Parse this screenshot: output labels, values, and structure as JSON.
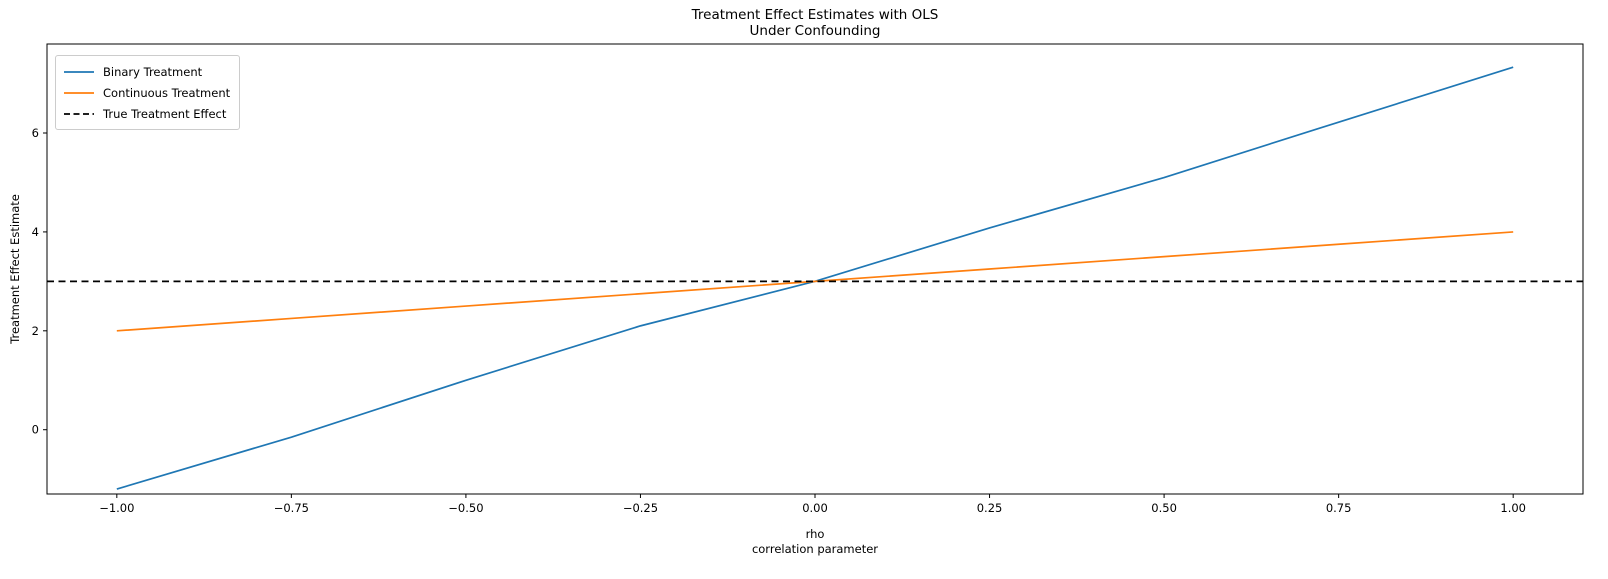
{
  "figure": {
    "background": "#ffffff"
  },
  "chart_data": {
    "type": "line",
    "title_lines": [
      "Treatment Effect Estimates with OLS",
      "Under Confounding"
    ],
    "xlabel_lines": [
      "rho",
      "correlation parameter"
    ],
    "ylabel": "Treatment Effect Estimate",
    "xlim": [
      -1.1,
      1.1
    ],
    "ylim": [
      -1.3,
      7.8
    ],
    "grid": false,
    "legend_position": "upper left",
    "axis_color": "#000000",
    "xticks": {
      "values": [
        -1.0,
        -0.75,
        -0.5,
        -0.25,
        0.0,
        0.25,
        0.5,
        0.75,
        1.0
      ],
      "labels": [
        "−1.00",
        "−0.75",
        "−0.50",
        "−0.25",
        "0.00",
        "0.25",
        "0.50",
        "0.75",
        "1.00"
      ]
    },
    "yticks": {
      "values": [
        0,
        2,
        4,
        6
      ],
      "labels": [
        "0",
        "2",
        "4",
        "6"
      ]
    },
    "x": [
      -1.0,
      -0.75,
      -0.5,
      -0.25,
      0.0,
      0.25,
      0.5,
      0.75,
      1.0
    ],
    "series": [
      {
        "name": "Binary Treatment",
        "color": "#1f77b4",
        "line_style": "solid",
        "values": [
          -1.2,
          -0.15,
          1.0,
          2.1,
          3.0,
          4.08,
          5.1,
          6.22,
          7.33
        ]
      },
      {
        "name": "Continuous Treatment",
        "color": "#ff7f0e",
        "line_style": "solid",
        "values": [
          2.0,
          2.25,
          2.5,
          2.75,
          3.0,
          3.25,
          3.5,
          3.75,
          4.0
        ]
      },
      {
        "name": "True Treatment Effect",
        "color": "#000000",
        "line_style": "dashed",
        "constant": 3.0,
        "span": "full-width"
      }
    ]
  }
}
